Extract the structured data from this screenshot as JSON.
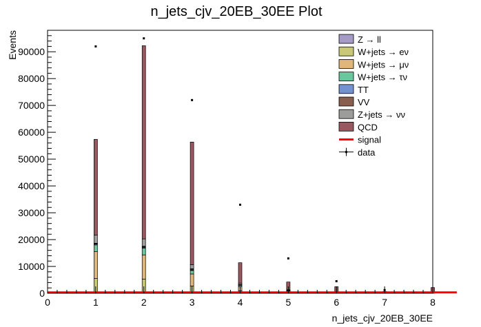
{
  "chart_data": {
    "type": "bar",
    "title": "n_jets_cjv_20EB_30EE Plot",
    "xlabel": "n_jets_cjv_20EB_30EE",
    "ylabel": "Events",
    "xlim": [
      0,
      8
    ],
    "ylim": [
      0,
      98000
    ],
    "x_ticks": [
      "0",
      "1",
      "2",
      "3",
      "4",
      "5",
      "6",
      "7",
      "8"
    ],
    "y_ticks": [
      "0",
      "10000",
      "20000",
      "30000",
      "40000",
      "50000",
      "60000",
      "70000",
      "80000",
      "90000"
    ],
    "bin_centers": [
      1,
      2,
      3,
      4,
      5,
      6,
      7,
      8
    ],
    "stack_order": [
      "W+jets → eν",
      "W+jets → μν",
      "W+jets → τν",
      "Z → ll",
      "TT",
      "VV",
      "Z+jets → νν",
      "QCD"
    ],
    "series": [
      {
        "name": "Z → ll",
        "color": "#a69ac6",
        "values": [
          300,
          300,
          200,
          100,
          40,
          20,
          10,
          5
        ]
      },
      {
        "name": "W+jets → eν",
        "color": "#c8c878",
        "values": [
          5500,
          5300,
          2700,
          900,
          300,
          150,
          60,
          30
        ]
      },
      {
        "name": "W+jets → μν",
        "color": "#e0b67c",
        "values": [
          10000,
          9000,
          4500,
          1500,
          500,
          250,
          100,
          50
        ]
      },
      {
        "name": "W+jets → τν",
        "color": "#6cc59c",
        "values": [
          2500,
          2500,
          1300,
          500,
          170,
          80,
          40,
          20
        ]
      },
      {
        "name": "TT",
        "color": "#7292d0",
        "values": [
          150,
          250,
          300,
          200,
          100,
          50,
          20,
          10
        ]
      },
      {
        "name": "VV",
        "color": "#8a5e4e",
        "values": [
          200,
          200,
          150,
          80,
          30,
          15,
          5,
          3
        ]
      },
      {
        "name": "Z+jets → νν",
        "color": "#9c9c9a",
        "values": [
          3000,
          2700,
          1500,
          500,
          160,
          80,
          35,
          15
        ]
      },
      {
        "name": "QCD",
        "color": "#98585f",
        "values": [
          35700,
          72000,
          45700,
          7600,
          2900,
          1800,
          400,
          2000
        ]
      }
    ],
    "signal": {
      "name": "signal",
      "color": "#ff0000",
      "values": [
        300,
        300,
        300,
        300,
        300,
        300,
        300,
        300
      ]
    },
    "data": {
      "name": "data",
      "x": [
        1,
        2,
        3,
        4,
        5,
        6,
        7
      ],
      "values": [
        92000,
        95000,
        72000,
        33000,
        13000,
        4500,
        1200
      ]
    },
    "legend_position": "top-right"
  }
}
